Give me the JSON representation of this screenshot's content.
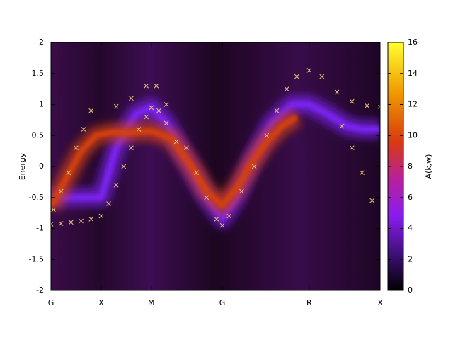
{
  "chart_data": {
    "type": "spectral",
    "ylabel": "Energy",
    "xlim": [
      0,
      6.56
    ],
    "xticks": [
      {
        "value": 0,
        "label": "G"
      },
      {
        "value": 1,
        "label": "X"
      },
      {
        "value": 2,
        "label": "M"
      },
      {
        "value": 3.414,
        "label": "G"
      },
      {
        "value": 5.146,
        "label": "R"
      },
      {
        "value": 6.56,
        "label": "X"
      }
    ],
    "ylim": [
      -2,
      2
    ],
    "yticks": [
      -2,
      -1.5,
      -1,
      -0.5,
      0,
      0.5,
      1,
      1.5,
      2
    ],
    "colorbar_label": "A(k,w)",
    "clim": [
      0,
      16
    ],
    "cbticks": [
      0,
      2,
      4,
      6,
      8,
      10,
      12,
      14,
      16
    ],
    "series": [
      {
        "mode": "band",
        "color": "#7a22f0",
        "x": [
          0,
          1,
          1.3,
          1.7,
          2,
          2.3,
          2.7,
          3.1,
          3.414,
          3.7,
          4.0,
          4.4,
          4.8,
          5.146,
          5.5,
          5.9,
          6.2,
          6.56
        ],
        "values": [
          -0.5,
          -0.5,
          0.3,
          0.85,
          0.95,
          0.7,
          0.1,
          -0.5,
          -0.85,
          -0.5,
          0.1,
          0.7,
          1.0,
          1.0,
          0.85,
          0.65,
          0.6,
          0.6
        ]
      },
      {
        "mode": "band",
        "color": "#d2400e",
        "x": [
          0,
          0.3,
          0.6,
          0.9,
          1.2,
          1.6,
          2,
          2.4,
          2.8,
          3.1,
          3.414,
          3.7,
          4.0,
          4.3,
          4.6,
          4.9
        ],
        "values": [
          -0.65,
          -0.2,
          0.25,
          0.5,
          0.55,
          0.55,
          0.57,
          0.45,
          0.0,
          -0.4,
          -0.63,
          -0.35,
          0.05,
          0.4,
          0.65,
          0.8
        ]
      },
      {
        "mode": "markers",
        "color": "#e6c27a",
        "x": [
          0,
          0.2,
          0.4,
          0.6,
          0.8,
          1.0,
          1.15,
          1.3,
          1.45,
          1.6,
          1.75,
          1.9,
          2.0,
          2.15,
          2.3,
          2.5,
          0.05,
          0.2,
          0.35,
          0.5,
          0.65,
          0.8,
          1.3,
          1.6,
          1.9,
          2.1,
          2.3,
          2.7,
          2.9,
          3.1,
          3.3,
          3.414,
          3.55,
          3.8,
          4.05,
          4.3,
          4.5,
          4.7,
          4.9,
          5.146,
          5.4,
          5.7,
          6.0,
          6.3,
          6.56,
          5.8,
          6.0,
          6.2,
          6.4
        ],
        "values": [
          -0.93,
          -0.92,
          -0.9,
          -0.88,
          -0.85,
          -0.8,
          -0.6,
          -0.3,
          0.0,
          0.3,
          0.6,
          0.8,
          0.95,
          0.9,
          0.7,
          0.4,
          -0.7,
          -0.4,
          -0.1,
          0.3,
          0.6,
          0.9,
          0.97,
          1.1,
          1.3,
          1.3,
          1.0,
          0.3,
          -0.1,
          -0.5,
          -0.85,
          -0.95,
          -0.8,
          -0.4,
          0.0,
          0.5,
          0.9,
          1.25,
          1.45,
          1.55,
          1.45,
          1.2,
          1.05,
          0.98,
          0.97,
          0.65,
          0.3,
          -0.1,
          -0.55
        ]
      }
    ]
  }
}
